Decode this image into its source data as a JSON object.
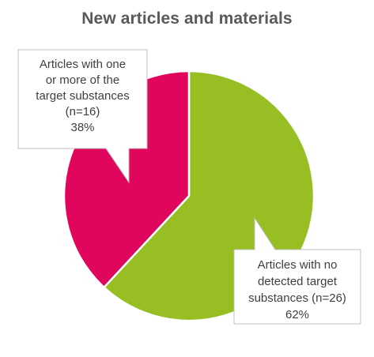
{
  "chart_data": {
    "type": "pie",
    "title": "New articles  and materials",
    "slices": [
      {
        "label_lines": [
          "Articles with no",
          "detected target",
          "substances (n=26)",
          "62%"
        ],
        "count": 26,
        "percent": 62,
        "color": "#97BF23"
      },
      {
        "label_lines": [
          "Articles with one",
          "or more of the",
          "target substances",
          "(n=16)",
          "38%"
        ],
        "count": 16,
        "percent": 38,
        "color": "#E0065E"
      }
    ],
    "start_angle_deg": 0,
    "direction": "clockwise",
    "legend": "none"
  }
}
